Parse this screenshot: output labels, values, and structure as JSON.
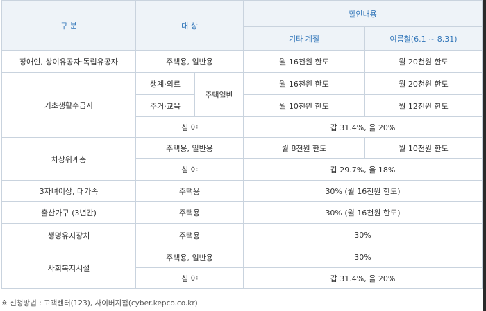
{
  "header": {
    "category": "구 분",
    "target": "대 상",
    "discount": "할인내용",
    "other_season": "기타 계절",
    "summer_season": "여름철(6.1 ~ 8.31)"
  },
  "rows": {
    "disabled": {
      "category": "장애인, 상이유공자·독립유공자",
      "target": "주택용, 일반용",
      "other": "월 16천원 한도",
      "summer": "월 20천원 한도"
    },
    "basic": {
      "category": "기초생활수급자",
      "sub1_target": "생계·의료",
      "sub_group": "주택일반",
      "sub1_other": "월 16천원 한도",
      "sub1_summer": "월 20천원 한도",
      "sub2_target": "주거·교육",
      "sub2_other": "월 10천원 한도",
      "sub2_summer": "월 12천원 한도",
      "night_target": "심 야",
      "night_value": "갑 31.4%, 을 20%"
    },
    "near_poor": {
      "category": "차상위계층",
      "target": "주택용, 일반용",
      "other": "월 8천원 한도",
      "summer": "월 10천원 한도",
      "night_target": "심 야",
      "night_value": "갑 29.7%, 을 18%"
    },
    "large_family": {
      "category": "3자녀이상, 대가족",
      "target": "주택용",
      "value": "30% (월 16천원 한도)"
    },
    "birth": {
      "category": "출산가구 (3년간)",
      "target": "주택용",
      "value": "30% (월 16천원 한도)"
    },
    "life_support": {
      "category": "생명유지장치",
      "target": "주택용",
      "value": "30%"
    },
    "welfare": {
      "category": "사회복지시설",
      "target": "주택용, 일반용",
      "value": "30%",
      "night_target": "심 야",
      "night_value": "갑 31.4%, 을 20%"
    }
  },
  "note": "※ 신청방법 : 고객센터(123), 사이버지점(cyber.kepco.co.kr)"
}
